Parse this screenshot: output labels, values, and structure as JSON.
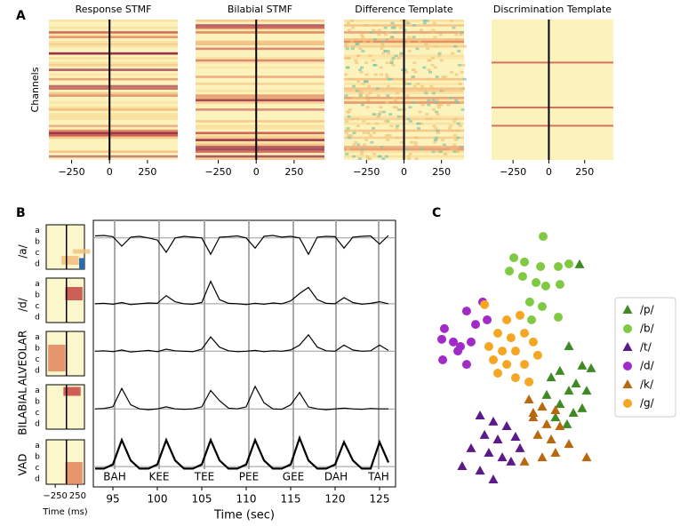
{
  "panel_labels": [
    "A",
    "B",
    "C"
  ],
  "chart_data": [
    {
      "type": "heatmap",
      "title": "Response STMF",
      "ylabel": "Channels",
      "xlim": [
        -400,
        450
      ],
      "xticks": [
        {
          "value": -250,
          "label": "−250"
        },
        0,
        250
      ]
    },
    {
      "type": "heatmap",
      "title": "Bilabial STMF",
      "xlim": [
        -400,
        450
      ],
      "xticks": [
        {
          "value": -250,
          "label": "−250"
        },
        0,
        250
      ]
    },
    {
      "type": "heatmap",
      "title": "Difference Template",
      "xlim": [
        -400,
        400
      ],
      "xticks": [
        {
          "value": -250,
          "label": "−250"
        },
        0,
        250
      ]
    },
    {
      "type": "heatmap",
      "title": "Discrimination Template",
      "xlim": [
        -400,
        450
      ],
      "xticks": [
        {
          "value": -250,
          "label": "−250"
        },
        0,
        250
      ]
    },
    {
      "type": "template",
      "categories": [
        "a",
        "b",
        "c",
        "d"
      ],
      "xlabel": "Time (ms)",
      "xlim": [
        -450,
        400
      ],
      "xticks": [
        {
          "value": -250,
          "label": "−250"
        },
        250
      ]
    },
    {
      "type": "line",
      "xlabel": "Time (sec)",
      "xlim": [
        92.8,
        126.8
      ],
      "xticks": [
        95,
        100,
        105,
        110,
        115,
        120,
        125
      ],
      "x": [
        93,
        94,
        95,
        96,
        97,
        98,
        99,
        100,
        101,
        102,
        103,
        104,
        105,
        106,
        107,
        108,
        109,
        110,
        111,
        112,
        113,
        114,
        115,
        116,
        117,
        118,
        119,
        120,
        121,
        122,
        123,
        124,
        125,
        126
      ],
      "series": [
        {
          "name": "/a/",
          "threshold": 0.7,
          "values": [
            0.75,
            0.76,
            0.73,
            0.5,
            0.72,
            0.74,
            0.7,
            0.65,
            0.35,
            0.7,
            0.74,
            0.72,
            0.7,
            0.3,
            0.72,
            0.73,
            0.75,
            0.7,
            0.45,
            0.74,
            0.76,
            0.72,
            0.74,
            0.7,
            0.3,
            0.72,
            0.74,
            0.73,
            0.45,
            0.72,
            0.74,
            0.75,
            0.55,
            0.76
          ]
        },
        {
          "name": "/d/",
          "threshold": 0.35,
          "values": [
            0.35,
            0.36,
            0.34,
            0.38,
            0.33,
            0.35,
            0.37,
            0.36,
            0.55,
            0.4,
            0.35,
            0.34,
            0.38,
            0.9,
            0.45,
            0.36,
            0.35,
            0.33,
            0.36,
            0.34,
            0.37,
            0.35,
            0.42,
            0.6,
            0.75,
            0.45,
            0.36,
            0.35,
            0.5,
            0.38,
            0.34,
            0.36,
            0.4,
            0.35
          ]
        },
        {
          "name": "ALVEOLAR",
          "threshold": 0.45,
          "values": [
            0.45,
            0.46,
            0.44,
            0.48,
            0.43,
            0.45,
            0.47,
            0.44,
            0.5,
            0.46,
            0.45,
            0.44,
            0.5,
            0.8,
            0.55,
            0.46,
            0.44,
            0.45,
            0.47,
            0.44,
            0.46,
            0.45,
            0.48,
            0.6,
            0.85,
            0.55,
            0.46,
            0.45,
            0.6,
            0.48,
            0.45,
            0.46,
            0.6,
            0.47
          ]
        },
        {
          "name": "BILABIAL",
          "threshold": 0.3,
          "values": [
            0.3,
            0.31,
            0.35,
            0.8,
            0.4,
            0.3,
            0.28,
            0.3,
            0.35,
            0.3,
            0.29,
            0.3,
            0.35,
            0.75,
            0.5,
            0.32,
            0.3,
            0.35,
            0.85,
            0.45,
            0.3,
            0.29,
            0.4,
            0.7,
            0.35,
            0.3,
            0.28,
            0.3,
            0.32,
            0.3,
            0.29,
            0.31,
            0.3,
            0.3
          ]
        },
        {
          "name": "VAD",
          "threshold": 0.15,
          "values": [
            0.1,
            0.1,
            0.2,
            0.8,
            0.3,
            0.1,
            0.1,
            0.2,
            0.8,
            0.3,
            0.1,
            0.1,
            0.2,
            0.8,
            0.3,
            0.1,
            0.1,
            0.2,
            0.8,
            0.3,
            0.1,
            0.1,
            0.2,
            0.85,
            0.3,
            0.1,
            0.1,
            0.2,
            0.75,
            0.3,
            0.1,
            0.1,
            0.75,
            0.25
          ]
        }
      ],
      "annotations": [
        {
          "text": "BAH",
          "x": 95.2
        },
        {
          "text": "KEE",
          "x": 100.2
        },
        {
          "text": "TEE",
          "x": 105.3
        },
        {
          "text": "PEE",
          "x": 110.3
        },
        {
          "text": "GEE",
          "x": 115.3
        },
        {
          "text": "DAH",
          "x": 120.1
        },
        {
          "text": "TAH",
          "x": 124.9
        }
      ]
    },
    {
      "type": "scatter",
      "xlim": [
        0,
        100
      ],
      "ylim": [
        0,
        100
      ],
      "series": [
        {
          "name": "/p/",
          "marker": "triangle",
          "color": "#3f8a24",
          "x": [
            81.9,
            76.2,
            83.3,
            88.1,
            71.4,
            66.7,
            76.2,
            80,
            85.7,
            64.3,
            71.4,
            78.6,
            83.3,
            69,
            75.2
          ],
          "y": [
            85.7,
            55,
            47.7,
            46.7,
            45.7,
            43.3,
            38.3,
            41,
            38.3,
            36.7,
            33.3,
            30,
            31.7,
            28.3,
            25.7
          ]
        },
        {
          "name": "/b/",
          "marker": "circle",
          "color": "#7fc943",
          "x": [
            62.4,
            46.7,
            52.4,
            61,
            44.3,
            70.5,
            76.2,
            58.6,
            63.8,
            71.4,
            55.2,
            61.9,
            70.5,
            56.2,
            51.4
          ],
          "y": [
            96.3,
            88.3,
            86.7,
            85,
            83.3,
            85,
            86,
            79,
            77.7,
            78.3,
            71.7,
            70,
            66,
            65,
            81.3
          ]
        },
        {
          "name": "/t/",
          "marker": "triangle",
          "color": "#5b1a8a",
          "x": [
            28.6,
            35.7,
            42.9,
            31,
            38.1,
            47.6,
            23.8,
            33.3,
            40.5,
            19,
            28.6,
            45.2,
            50,
            35.7
          ],
          "y": [
            29,
            26.7,
            25,
            21.7,
            20,
            21,
            16.7,
            15,
            13.3,
            10,
            8.3,
            11.7,
            16.7,
            5
          ]
        },
        {
          "name": "/d/",
          "marker": "circle",
          "color": "#a22bc7",
          "x": [
            30,
            21.4,
            9.5,
            8.1,
            14.3,
            8.6,
            18.1,
            23.8,
            26.2,
            32.4,
            21.4,
            16.7
          ],
          "y": [
            71.7,
            68.3,
            61.7,
            57.7,
            56.7,
            50,
            55,
            56.7,
            63.3,
            65,
            48.3,
            53.3
          ]
        },
        {
          "name": "/k/",
          "marker": "triangle",
          "color": "#b8680f",
          "x": [
            54.8,
            61.9,
            69,
            57.1,
            64.3,
            71.4,
            59.5,
            66.7,
            76.2,
            52.4,
            61.9,
            69,
            85.7,
            57.1
          ],
          "y": [
            35,
            32.3,
            31,
            28.3,
            25.7,
            25,
            21.7,
            20,
            18.3,
            11.7,
            13.3,
            15,
            13.3,
            30
          ]
        },
        {
          "name": "/g/",
          "marker": "circle",
          "color": "#f5a623",
          "x": [
            31,
            42.9,
            50,
            38.1,
            45.2,
            52.4,
            33.3,
            40.5,
            47.6,
            57.1,
            35.7,
            42.9,
            52.4,
            59.5,
            38.1,
            47.6,
            54.8
          ],
          "y": [
            70.7,
            65,
            66.7,
            60,
            58.3,
            60,
            55,
            53.3,
            53.3,
            56.7,
            50,
            48.3,
            48.3,
            51.7,
            45,
            43.3,
            41.7
          ]
        }
      ]
    }
  ]
}
